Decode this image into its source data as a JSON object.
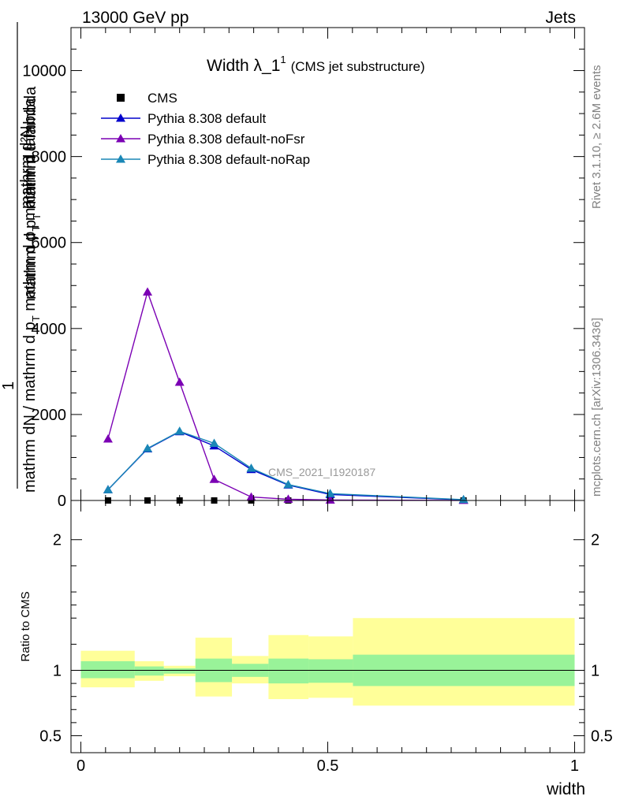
{
  "header": {
    "left": "13000 GeV pp",
    "right": "Jets"
  },
  "side_labels": {
    "rivet": "Rivet 3.1.10, ≥ 2.6M events",
    "mcplots": "mcplots.cern.ch [arXiv:1306.3436]"
  },
  "chart_data": [
    {
      "type": "line",
      "title_main": "Width λ_1",
      "title_sup": "1",
      "title_sub": "(CMS jet substructure)",
      "watermark": "CMS_2021_I1920187",
      "ylabel_top": "1",
      "ylabel_num": "mathrm d²N",
      "ylabel_den": "mathrm d p",
      "ylabel_den2": "T",
      "ylabel_den3": " mathrm d lambda",
      "ylabel_frac_num": "mathrm dN / mathrm d p",
      "ylabel_frac_sub": "T",
      "ylabel_frac_rest": " mathrm d p",
      "ylabel_frac_sub2": "T",
      "ylabel_frac_rest2": " mathrm d lambda",
      "xlim": [
        -0.02,
        1.02
      ],
      "ylim": [
        0,
        11000
      ],
      "yticks": [
        0,
        2000,
        4000,
        6000,
        8000,
        10000
      ],
      "ytick_labels": [
        "0",
        "2000",
        "4000",
        "6000",
        "8000",
        "10000"
      ],
      "legend_position": "top-left",
      "series": [
        {
          "name": "CMS",
          "color": "#000000",
          "marker": "square",
          "x": [
            0.055,
            0.135,
            0.2,
            0.27,
            0.345,
            0.42,
            0.505,
            0.775
          ],
          "y": [
            0,
            0,
            0,
            0,
            0,
            0,
            0,
            0
          ]
        },
        {
          "name": "Pythia 8.308 default",
          "color": "#0000cc",
          "marker": "triangle",
          "x": [
            0.055,
            0.135,
            0.2,
            0.27,
            0.345,
            0.42,
            0.505,
            0.775
          ],
          "y": [
            250,
            1200,
            1600,
            1270,
            720,
            360,
            140,
            15
          ]
        },
        {
          "name": "Pythia 8.308 default-noFsr",
          "color": "#7b00b4",
          "marker": "triangle",
          "x": [
            0.055,
            0.135,
            0.2,
            0.27,
            0.345,
            0.42,
            0.505,
            0.775
          ],
          "y": [
            1430,
            4850,
            2750,
            490,
            80,
            30,
            10,
            2
          ]
        },
        {
          "name": "Pythia 8.308 default-noRap",
          "color": "#1a87b6",
          "marker": "triangle",
          "x": [
            0.055,
            0.135,
            0.2,
            0.27,
            0.345,
            0.42,
            0.505,
            0.775
          ],
          "y": [
            250,
            1210,
            1610,
            1330,
            750,
            370,
            160,
            20
          ]
        }
      ]
    },
    {
      "type": "area",
      "ylabel": "Ratio to CMS",
      "xlabel": "width",
      "xlim": [
        -0.02,
        1.02
      ],
      "ylim": [
        0.37,
        2.3
      ],
      "yticks": [
        0.5,
        1,
        2
      ],
      "ytick_labels": [
        "0.5",
        "1",
        "2"
      ],
      "xticks": [
        0,
        0.5,
        1
      ],
      "xtick_labels": [
        "0",
        "0.5",
        "1"
      ],
      "bins": [
        {
          "xlo": 0.0,
          "xhi": 0.109,
          "inner": [
            0.94,
            1.07
          ],
          "outer": [
            0.87,
            1.15
          ]
        },
        {
          "xlo": 0.109,
          "xhi": 0.168,
          "inner": [
            0.96,
            1.03
          ],
          "outer": [
            0.92,
            1.07
          ]
        },
        {
          "xlo": 0.168,
          "xhi": 0.232,
          "inner": [
            0.975,
            1.015
          ],
          "outer": [
            0.955,
            1.035
          ]
        },
        {
          "xlo": 0.232,
          "xhi": 0.306,
          "inner": [
            0.91,
            1.09
          ],
          "outer": [
            0.8,
            1.25
          ]
        },
        {
          "xlo": 0.306,
          "xhi": 0.38,
          "inner": [
            0.95,
            1.05
          ],
          "outer": [
            0.9,
            1.11
          ]
        },
        {
          "xlo": 0.38,
          "xhi": 0.461,
          "inner": [
            0.9,
            1.09
          ],
          "outer": [
            0.78,
            1.27
          ]
        },
        {
          "xlo": 0.461,
          "xhi": 0.551,
          "inner": [
            0.905,
            1.085
          ],
          "outer": [
            0.79,
            1.26
          ]
        },
        {
          "xlo": 0.551,
          "xhi": 1.0,
          "inner": [
            0.88,
            1.12
          ],
          "outer": [
            0.73,
            1.4
          ]
        }
      ],
      "inner_color": "#99f399",
      "outer_color": "#ffff99"
    }
  ]
}
